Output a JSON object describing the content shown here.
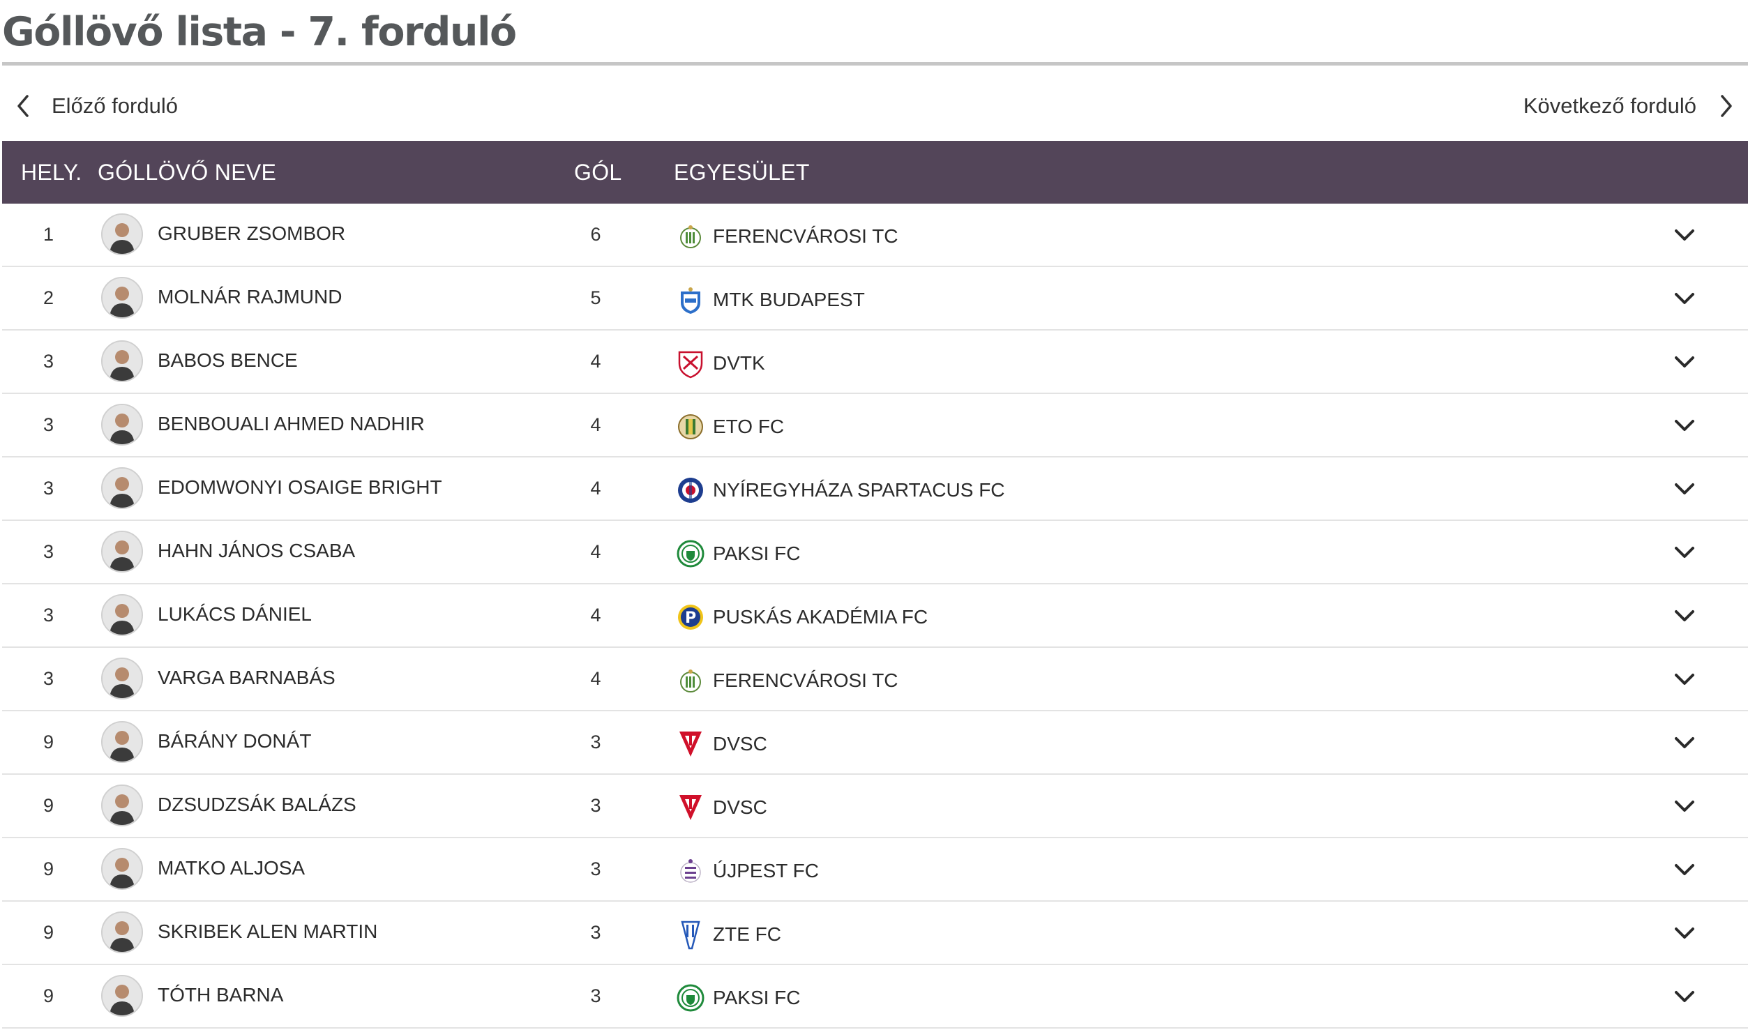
{
  "title": "Góllövő lista - 7. forduló",
  "nav": {
    "prev_label": "Előző forduló",
    "next_label": "Következő forduló"
  },
  "table": {
    "headers": {
      "position": "HELY.",
      "name": "GÓLLÖVŐ NEVE",
      "goals": "GÓL",
      "club": "EGYESÜLET"
    },
    "rows": [
      {
        "position": "1",
        "name": "GRUBER ZSOMBOR",
        "goals": "6",
        "club": "FERENCVÁROSI TC",
        "crest": "ferencvaros-crest"
      },
      {
        "position": "2",
        "name": "MOLNÁR RAJMUND",
        "goals": "5",
        "club": "MTK BUDAPEST",
        "crest": "mtk-crest"
      },
      {
        "position": "3",
        "name": "BABOS BENCE",
        "goals": "4",
        "club": "DVTK",
        "crest": "dvtk-crest"
      },
      {
        "position": "3",
        "name": "BENBOUALI AHMED NADHIR",
        "goals": "4",
        "club": "ETO FC",
        "crest": "eto-crest"
      },
      {
        "position": "3",
        "name": "EDOMWONYI OSAIGE BRIGHT",
        "goals": "4",
        "club": "NYÍREGYHÁZA SPARTACUS FC",
        "crest": "nyiregyhaza-crest"
      },
      {
        "position": "3",
        "name": "HAHN JÁNOS CSABA",
        "goals": "4",
        "club": "PAKSI FC",
        "crest": "paks-crest"
      },
      {
        "position": "3",
        "name": "LUKÁCS DÁNIEL",
        "goals": "4",
        "club": "PUSKÁS AKADÉMIA FC",
        "crest": "puskas-crest"
      },
      {
        "position": "3",
        "name": "VARGA BARNABÁS",
        "goals": "4",
        "club": "FERENCVÁROSI TC",
        "crest": "ferencvaros-crest"
      },
      {
        "position": "9",
        "name": "BÁRÁNY DONÁT",
        "goals": "3",
        "club": "DVSC",
        "crest": "dvsc-crest"
      },
      {
        "position": "9",
        "name": "DZSUDZSÁK BALÁZS",
        "goals": "3",
        "club": "DVSC",
        "crest": "dvsc-crest"
      },
      {
        "position": "9",
        "name": "MATKO ALJOSA",
        "goals": "3",
        "club": "ÚJPEST FC",
        "crest": "ujpest-crest"
      },
      {
        "position": "9",
        "name": "SKRIBEK ALEN MARTIN",
        "goals": "3",
        "club": "ZTE FC",
        "crest": "zte-crest"
      },
      {
        "position": "9",
        "name": "TÓTH BARNA",
        "goals": "3",
        "club": "PAKSI FC",
        "crest": "paks-crest"
      }
    ]
  },
  "colors": {
    "header_bg": "#534559",
    "title": "#55585a",
    "rule": "#c6c6c6",
    "row_border": "#e3e3e3"
  }
}
